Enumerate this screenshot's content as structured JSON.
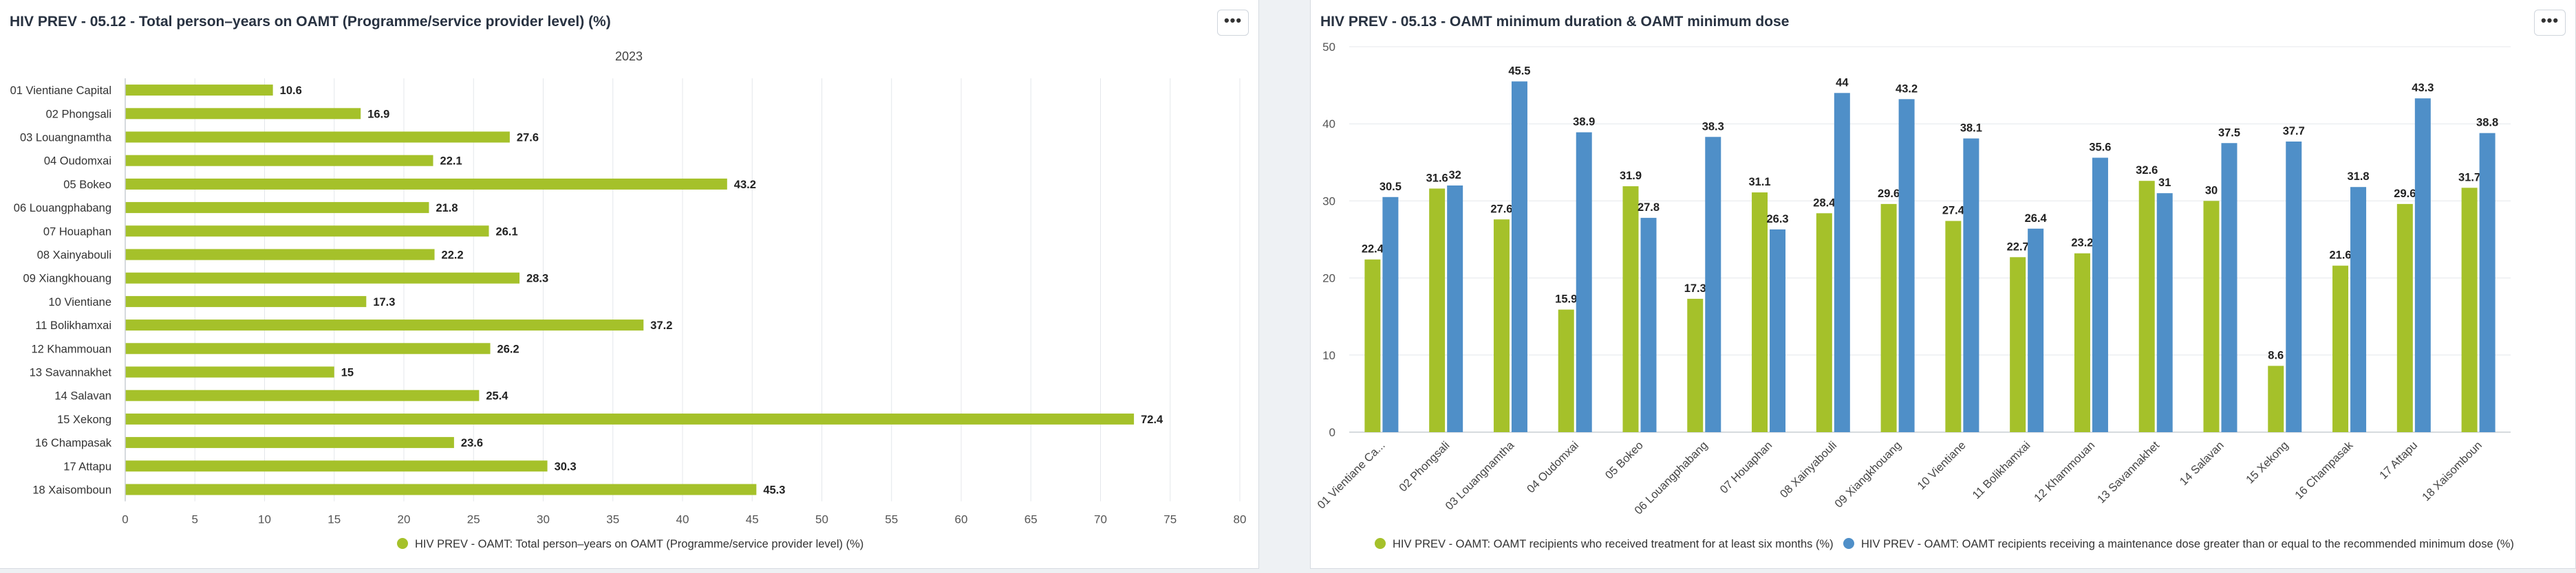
{
  "left_panel": {
    "title": "HIV PREV - 05.12 - Total person–years on OAMT (Programme/service provider level) (%)",
    "menu_label": "•••"
  },
  "right_panel": {
    "title": "HIV PREV - 05.13 - OAMT minimum duration & OAMT minimum dose",
    "menu_label": "•••"
  },
  "colors": {
    "green": "#a5c12a",
    "blue": "#4f8fc8",
    "grid": "#e4e7eb",
    "axis": "#c8cdd3"
  },
  "chart_data": [
    {
      "type": "bar",
      "orientation": "horizontal",
      "title": "",
      "subtitle": "2023",
      "categories": [
        "01 Vientiane Capital",
        "02 Phongsali",
        "03 Louangnamtha",
        "04 Oudomxai",
        "05 Bokeo",
        "06 Louangphabang",
        "07 Houaphan",
        "08 Xainyabouli",
        "09 Xiangkhouang",
        "10 Vientiane",
        "11 Bolikhamxai",
        "12 Khammouan",
        "13 Savannakhet",
        "14 Salavan",
        "15 Xekong",
        "16 Champasak",
        "17 Attapu",
        "18 Xaisomboun"
      ],
      "series": [
        {
          "name": "HIV PREV - OAMT: Total person–years on OAMT (Programme/service provider level) (%)",
          "color": "#a5c12a",
          "values": [
            10.6,
            16.9,
            27.6,
            22.1,
            43.2,
            21.8,
            26.1,
            22.2,
            28.3,
            17.3,
            37.2,
            26.2,
            15,
            25.4,
            72.4,
            23.6,
            30.3,
            45.3
          ]
        }
      ],
      "xlim": [
        0,
        80
      ],
      "xticks": [
        0,
        5,
        10,
        15,
        20,
        25,
        30,
        35,
        40,
        45,
        50,
        55,
        60,
        65,
        70,
        75,
        80
      ],
      "grid": true,
      "legend": "bottom"
    },
    {
      "type": "bar",
      "orientation": "vertical",
      "title": "",
      "categories": [
        "01 Vientiane Ca...",
        "02 Phongsali",
        "03 Louangnamtha",
        "04 Oudomxai",
        "05 Bokeo",
        "06 Louangphabang",
        "07 Houaphan",
        "08 Xainyabouli",
        "09 Xiangkhouang",
        "10 Vientiane",
        "11 Bolikhamxai",
        "12 Khammouan",
        "13 Savannakhet",
        "14 Salavan",
        "15 Xekong",
        "16 Champasak",
        "17 Attapu",
        "18 Xaisomboun"
      ],
      "series": [
        {
          "name": "HIV PREV - OAMT: OAMT recipients who received treatment for at least six months (%)",
          "color": "#a5c12a",
          "values": [
            22.4,
            31.6,
            27.6,
            15.9,
            31.9,
            17.3,
            31.1,
            28.4,
            29.6,
            27.4,
            22.7,
            23.2,
            32.6,
            30,
            8.6,
            21.6,
            29.6,
            31.7
          ]
        },
        {
          "name": "HIV PREV - OAMT: OAMT recipients receiving a maintenance dose greater than or equal to the recommended minimum dose (%)",
          "color": "#4f8fc8",
          "values": [
            30.5,
            32,
            45.5,
            38.9,
            27.8,
            38.3,
            26.3,
            44,
            43.2,
            38.1,
            26.4,
            35.6,
            31,
            37.5,
            37.7,
            31.8,
            43.3,
            38.8
          ]
        }
      ],
      "ylim": [
        0,
        50
      ],
      "yticks": [
        0,
        10,
        20,
        30,
        40,
        50
      ],
      "grid": true,
      "legend": "bottom"
    }
  ]
}
